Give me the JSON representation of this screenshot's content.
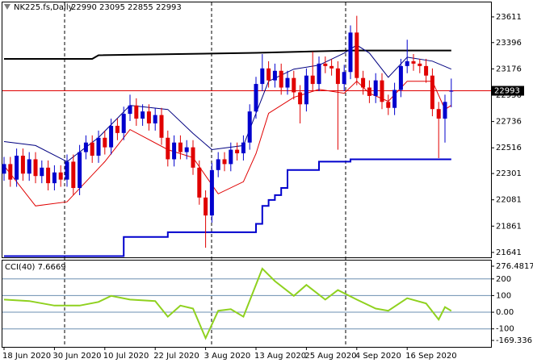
{
  "chart_data": [
    {
      "type": "candlestick",
      "title": "NK225.fs,Daily",
      "ohlc_label": "22990 23095 22855 22993",
      "categories": [
        "18 Jun 2020",
        null,
        null,
        null,
        null,
        null,
        null,
        null,
        "30 Jun 2020",
        null,
        null,
        null,
        null,
        null,
        null,
        null,
        "10 Jul 2020",
        null,
        null,
        null,
        null,
        null,
        null,
        null,
        "22 Jul 2020",
        null,
        null,
        null,
        null,
        null,
        null,
        null,
        "3 Aug 2020",
        null,
        null,
        null,
        null,
        null,
        null,
        null,
        "13 Aug 2020",
        null,
        null,
        null,
        null,
        null,
        null,
        null,
        "25 Aug 2020",
        null,
        null,
        null,
        null,
        null,
        null,
        null,
        "4 Sep 2020",
        null,
        null,
        null,
        null,
        null,
        null,
        null,
        "16 Sep 2020",
        null,
        null,
        null,
        null,
        null,
        null,
        null
      ],
      "open": [
        22300,
        22380,
        22250,
        22450,
        22300,
        22420,
        22280,
        22350,
        22220,
        22310,
        22250,
        22400,
        22180,
        22480,
        22560,
        22450,
        22600,
        22520,
        22700,
        22640,
        22800,
        22870,
        22760,
        22820,
        22720,
        22790,
        22600,
        22420,
        22560,
        22480,
        22520,
        22350,
        22100,
        21950,
        22330,
        22420,
        22380,
        22500,
        22470,
        22560,
        22820,
        23050,
        23180,
        23080,
        23160,
        23020,
        23100,
        22980,
        22880,
        23120,
        23050,
        23220,
        23200,
        23180,
        23050,
        23150,
        23480,
        23100,
        23020,
        22950,
        23080,
        22900,
        22850,
        23000,
        23200,
        23240,
        23220,
        23200,
        23120,
        22840,
        22760,
        22990
      ],
      "high": [
        22440,
        22440,
        22510,
        22510,
        22480,
        22480,
        22410,
        22410,
        22370,
        22370,
        22460,
        22460,
        22540,
        22620,
        22620,
        22660,
        22660,
        22760,
        22760,
        22860,
        22960,
        22930,
        22880,
        22880,
        22850,
        22850,
        22660,
        22620,
        22620,
        22580,
        22580,
        22410,
        22160,
        22390,
        22480,
        22480,
        22560,
        22560,
        22620,
        22880,
        23110,
        23300,
        23240,
        23220,
        23220,
        23160,
        23160,
        23040,
        23180,
        23320,
        23280,
        23280,
        23260,
        23240,
        23210,
        23540,
        23620,
        23160,
        23080,
        23140,
        23140,
        22960,
        23060,
        23260,
        23420,
        23300,
        23260,
        23260,
        23180,
        22900,
        22960,
        23095
      ],
      "low": [
        22240,
        22190,
        22190,
        22240,
        22240,
        22220,
        22220,
        22160,
        22160,
        22190,
        22190,
        22120,
        22120,
        22420,
        22390,
        22390,
        22460,
        22460,
        22580,
        22580,
        22740,
        22700,
        22700,
        22660,
        22660,
        22540,
        22360,
        22360,
        22420,
        22420,
        22290,
        22040,
        21680,
        21890,
        22270,
        22320,
        22320,
        22410,
        22410,
        22500,
        22760,
        22990,
        23020,
        23020,
        22960,
        22960,
        22920,
        22720,
        22820,
        22990,
        22990,
        23140,
        23120,
        22500,
        22990,
        23090,
        23040,
        22960,
        22890,
        22890,
        22840,
        22790,
        22790,
        22940,
        23140,
        23160,
        23140,
        23060,
        22780,
        22430,
        22560,
        22855
      ],
      "close": [
        22380,
        22250,
        22450,
        22300,
        22420,
        22280,
        22350,
        22220,
        22310,
        22250,
        22400,
        22180,
        22480,
        22560,
        22450,
        22600,
        22520,
        22700,
        22640,
        22800,
        22870,
        22760,
        22820,
        22720,
        22790,
        22600,
        22420,
        22560,
        22480,
        22520,
        22350,
        22100,
        21950,
        22330,
        22420,
        22380,
        22500,
        22470,
        22560,
        22820,
        23050,
        23180,
        23080,
        23160,
        23020,
        23100,
        22980,
        22880,
        23120,
        23050,
        23220,
        23200,
        23180,
        23050,
        23150,
        23480,
        23100,
        23020,
        22950,
        23080,
        22900,
        22850,
        23000,
        23200,
        23240,
        23220,
        23200,
        23120,
        22840,
        22760,
        22900,
        22993
      ],
      "bull_color": "#0000cd",
      "bear_color": "#e00000",
      "series": [
        {
          "color": "#000000",
          "x": [
            0,
            14,
            15,
            40,
            55,
            71
          ],
          "values": [
            23260,
            23260,
            23290,
            23310,
            23330,
            23330
          ]
        },
        {
          "color": "#0000cd",
          "x": [
            0,
            19,
            19,
            26,
            26,
            40,
            40,
            41,
            41,
            42,
            42,
            43,
            43,
            44,
            44,
            45,
            45,
            50,
            50,
            55,
            55,
            71
          ],
          "values": [
            21610,
            21610,
            21770,
            21770,
            21810,
            21810,
            21880,
            21880,
            22030,
            22030,
            22080,
            22080,
            22120,
            22120,
            22180,
            22180,
            22330,
            22330,
            22400,
            22400,
            22420,
            22420
          ]
        },
        {
          "color": "#e00000",
          "x": [
            0,
            5,
            10,
            16,
            20,
            26,
            30,
            34,
            38,
            40,
            42,
            46,
            50,
            54,
            56,
            58,
            61,
            64,
            68,
            70,
            71
          ],
          "values": [
            22367,
            22030,
            22064,
            22400,
            22669,
            22501,
            22434,
            22131,
            22232,
            22467,
            22804,
            22938,
            23005,
            22972,
            23073,
            22972,
            22905,
            23073,
            23073,
            22837,
            22871
          ]
        },
        {
          "color": "#000080",
          "x": [
            0,
            5,
            10,
            15,
            20,
            26,
            30,
            33,
            38,
            40,
            42,
            46,
            50,
            54,
            56,
            58,
            61,
            64,
            68,
            71
          ],
          "values": [
            22568,
            22535,
            22400,
            22602,
            22871,
            22837,
            22636,
            22501,
            22535,
            22804,
            23073,
            23174,
            23207,
            23308,
            23375,
            23308,
            23106,
            23274,
            23241,
            23174
          ]
        }
      ],
      "price_line": 22993,
      "price_line_color": "#e00000",
      "ylim": [
        21600,
        23732
      ],
      "yticks": [
        23611,
        23396,
        23176,
        22956,
        22736,
        22516,
        22301,
        22081,
        21861,
        21641
      ]
    },
    {
      "type": "line",
      "title": "CCI(40) 7.6669",
      "series": [
        {
          "color": "#8fd11f",
          "x": [
            0,
            4,
            8,
            12,
            15,
            17,
            20,
            24,
            26,
            28,
            30,
            32,
            34,
            36,
            38,
            41,
            43,
            46,
            48,
            51,
            53,
            56,
            59,
            61,
            64,
            67,
            69,
            70,
            71
          ],
          "values": [
            76,
            67,
            40,
            40,
            62,
            98,
            76,
            67,
            -27,
            40,
            22,
            -156,
            9,
            18,
            -27,
            262,
            187,
            98,
            164,
            76,
            133,
            76,
            22,
            9,
            84,
            53,
            -44,
            31,
            8
          ]
        }
      ],
      "ylim": [
        -169.336,
        276.4817
      ],
      "yticks": [
        276.4817,
        200,
        100,
        {
          "value": 0,
          "label": "0.00"
        },
        -100,
        -169.336
      ],
      "level_color": "#6b8fb0"
    }
  ]
}
